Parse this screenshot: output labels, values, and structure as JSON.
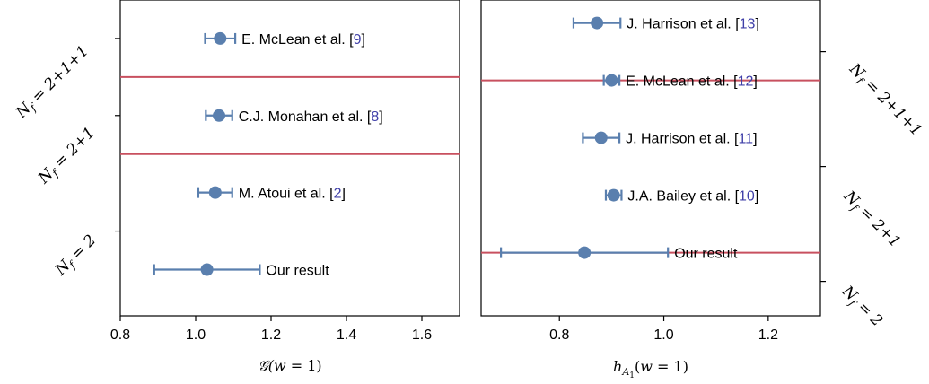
{
  "colors": {
    "point": "#5a7fae",
    "separator": "#c8505f",
    "ref": "#3f3fa8"
  },
  "chart_data": [
    {
      "type": "scatter",
      "title": "",
      "xlabel": "𝒢(w = 1)",
      "xlim": [
        0.8,
        1.7
      ],
      "xticks": [
        0.8,
        1.0,
        1.2,
        1.4,
        1.6
      ],
      "xtick_labels": [
        "0.8",
        "1.0",
        "1.2",
        "1.4",
        "1.6"
      ],
      "groups": [
        {
          "label": "Nf = 2+1+1",
          "label_side": "left",
          "y_center": 3.5
        },
        {
          "label": "Nf = 2+1",
          "label_side": "left",
          "y_center": 2.5
        },
        {
          "label": "Nf = 2",
          "label_side": "left",
          "y_center": 1.0
        }
      ],
      "separators": [
        3.0,
        2.0
      ],
      "ylim": [
        -0.1,
        4.0
      ],
      "points": [
        {
          "name": "E. McLean et al.",
          "ref": "9",
          "y": 3.5,
          "x": 1.065,
          "err": 0.04
        },
        {
          "name": "C.J. Monahan et al.",
          "ref": "8",
          "y": 2.5,
          "x": 1.062,
          "err": 0.035
        },
        {
          "name": "M. Atoui et al.",
          "ref": "2",
          "y": 1.5,
          "x": 1.052,
          "err": 0.045
        },
        {
          "name": "Our result",
          "ref": "",
          "y": 0.5,
          "x": 1.03,
          "err": 0.14
        }
      ]
    },
    {
      "type": "scatter",
      "title": "",
      "xlabel": "h_A1(w = 1)",
      "xlim": [
        0.65,
        1.3
      ],
      "xticks": [
        0.8,
        1.0,
        1.2
      ],
      "xtick_labels": [
        "0.8",
        "1.0",
        "1.2"
      ],
      "groups": [
        {
          "label": "Nf = 2+1+1",
          "label_side": "right",
          "y_center": 4.5
        },
        {
          "label": "Nf = 2+1",
          "label_side": "right",
          "y_center": 2.5
        },
        {
          "label": "Nf = 2",
          "label_side": "right",
          "y_center": 0.5
        }
      ],
      "separators": [
        4.0,
        1.0
      ],
      "ylim": [
        -0.1,
        5.4
      ],
      "points": [
        {
          "name": "J. Harrison et al.",
          "ref": "13",
          "y": 5.0,
          "x": 0.872,
          "err": 0.045
        },
        {
          "name": "E. McLean et al.",
          "ref": "12",
          "y": 4.0,
          "x": 0.9,
          "err": 0.015
        },
        {
          "name": "J. Harrison et al.",
          "ref": "11",
          "y": 3.0,
          "x": 0.88,
          "err": 0.035
        },
        {
          "name": "J.A. Bailey et al.",
          "ref": "10",
          "y": 2.0,
          "x": 0.904,
          "err": 0.015
        },
        {
          "name": "Our result",
          "ref": "",
          "y": 1.0,
          "x": 0.848,
          "err": 0.16
        }
      ]
    }
  ]
}
